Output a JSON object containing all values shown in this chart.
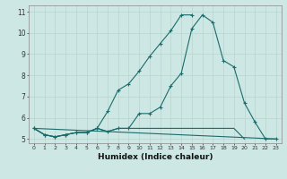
{
  "x": [
    0,
    1,
    2,
    3,
    4,
    5,
    6,
    7,
    8,
    9,
    10,
    11,
    12,
    13,
    14,
    15,
    16,
    17,
    18,
    19,
    20,
    21,
    22,
    23
  ],
  "line1_y": [
    5.5,
    5.2,
    5.1,
    5.2,
    5.3,
    5.3,
    5.5,
    5.35,
    5.5,
    5.5,
    6.2,
    6.2,
    6.5,
    7.5,
    8.1,
    10.2,
    10.85,
    10.5,
    8.7,
    8.4,
    6.7,
    5.8,
    5.0,
    5.0
  ],
  "line2_x": [
    0,
    1,
    2,
    3,
    4,
    5,
    6,
    7,
    8,
    9,
    10,
    11,
    12,
    13,
    14,
    15
  ],
  "line2_y": [
    5.5,
    5.2,
    5.1,
    5.2,
    5.3,
    5.3,
    5.5,
    6.3,
    7.3,
    7.6,
    8.2,
    8.9,
    9.5,
    10.1,
    10.85,
    10.85
  ],
  "line3_x": [
    0,
    23
  ],
  "line3_y": [
    5.5,
    5.0
  ],
  "line4_x": [
    0,
    1,
    2,
    3,
    4,
    5,
    6,
    7,
    8,
    9,
    10,
    11,
    12,
    13,
    14,
    15,
    16,
    17,
    18,
    19,
    20
  ],
  "line4_y": [
    5.5,
    5.2,
    5.1,
    5.2,
    5.3,
    5.3,
    5.5,
    5.35,
    5.5,
    5.5,
    5.5,
    5.5,
    5.5,
    5.5,
    5.5,
    5.5,
    5.5,
    5.5,
    5.5,
    5.5,
    5.0
  ],
  "bg_color": "#cde8e4",
  "grid_color": "#b8d4cc",
  "line_color": "#1a6b6b",
  "xlabel": "Humidex (Indice chaleur)",
  "xlim": [
    -0.5,
    23.5
  ],
  "ylim": [
    4.8,
    11.3
  ],
  "yticks": [
    5,
    6,
    7,
    8,
    9,
    10,
    11
  ],
  "xticks": [
    0,
    1,
    2,
    3,
    4,
    5,
    6,
    7,
    8,
    9,
    10,
    11,
    12,
    13,
    14,
    15,
    16,
    17,
    18,
    19,
    20,
    21,
    22,
    23
  ]
}
